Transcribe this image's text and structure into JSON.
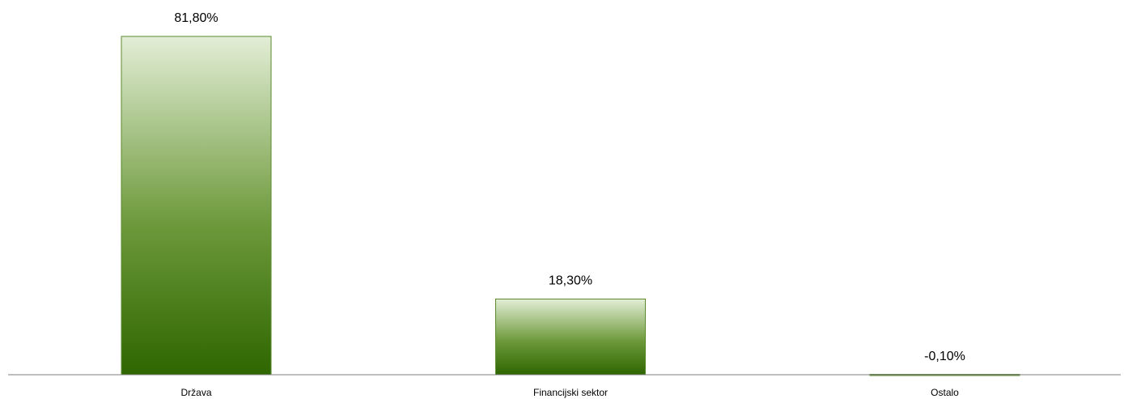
{
  "chart_data": {
    "type": "bar",
    "categories": [
      "Država",
      "Financijski sektor",
      "Ostalo"
    ],
    "values": [
      81.8,
      18.3,
      -0.1
    ],
    "data_labels": [
      "81,80%",
      "18,30%",
      "-0,10%"
    ],
    "title": "",
    "xlabel": "",
    "ylabel": "",
    "ylim": [
      -0.1,
      81.8
    ],
    "grid": false,
    "legend": "none",
    "colors": {
      "bar_top": "#e3eed6",
      "bar_bottom": "#2e6600",
      "bar_border": "#5a8a2e",
      "axis": "#7f7f7f"
    }
  }
}
